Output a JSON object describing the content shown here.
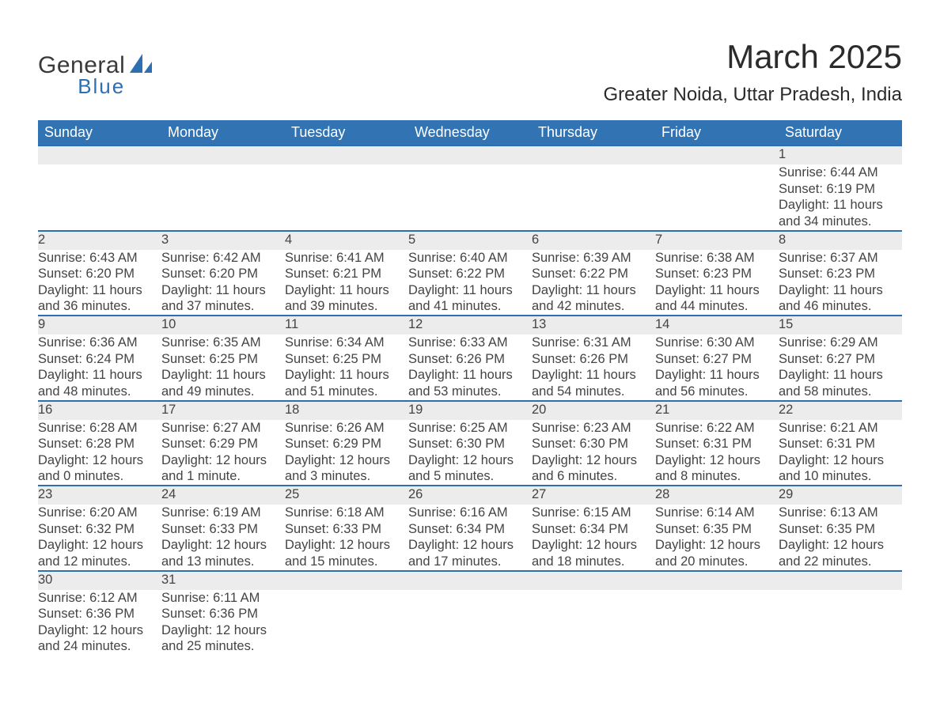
{
  "brand": {
    "name1": "General",
    "name2": "Blue"
  },
  "title": "March 2025",
  "location": "Greater Noida, Uttar Pradesh, India",
  "weekday_labels": [
    "Sunday",
    "Monday",
    "Tuesday",
    "Wednesday",
    "Thursday",
    "Friday",
    "Saturday"
  ],
  "colors": {
    "header_bg": "#3173b3",
    "header_text": "#ffffff",
    "row_divider": "#2d6fb1",
    "daynum_bg": "#ececec",
    "body_text": "#444444",
    "brand_blue": "#2d6fb1"
  },
  "calendar": {
    "type": "table",
    "month": "March",
    "year": 2025,
    "first_weekday_index": 6,
    "weeks": [
      [
        null,
        null,
        null,
        null,
        null,
        null,
        {
          "day": 1,
          "sunrise": "Sunrise: 6:44 AM",
          "sunset": "Sunset: 6:19 PM",
          "daylight": "Daylight: 11 hours and 34 minutes."
        }
      ],
      [
        {
          "day": 2,
          "sunrise": "Sunrise: 6:43 AM",
          "sunset": "Sunset: 6:20 PM",
          "daylight": "Daylight: 11 hours and 36 minutes."
        },
        {
          "day": 3,
          "sunrise": "Sunrise: 6:42 AM",
          "sunset": "Sunset: 6:20 PM",
          "daylight": "Daylight: 11 hours and 37 minutes."
        },
        {
          "day": 4,
          "sunrise": "Sunrise: 6:41 AM",
          "sunset": "Sunset: 6:21 PM",
          "daylight": "Daylight: 11 hours and 39 minutes."
        },
        {
          "day": 5,
          "sunrise": "Sunrise: 6:40 AM",
          "sunset": "Sunset: 6:22 PM",
          "daylight": "Daylight: 11 hours and 41 minutes."
        },
        {
          "day": 6,
          "sunrise": "Sunrise: 6:39 AM",
          "sunset": "Sunset: 6:22 PM",
          "daylight": "Daylight: 11 hours and 42 minutes."
        },
        {
          "day": 7,
          "sunrise": "Sunrise: 6:38 AM",
          "sunset": "Sunset: 6:23 PM",
          "daylight": "Daylight: 11 hours and 44 minutes."
        },
        {
          "day": 8,
          "sunrise": "Sunrise: 6:37 AM",
          "sunset": "Sunset: 6:23 PM",
          "daylight": "Daylight: 11 hours and 46 minutes."
        }
      ],
      [
        {
          "day": 9,
          "sunrise": "Sunrise: 6:36 AM",
          "sunset": "Sunset: 6:24 PM",
          "daylight": "Daylight: 11 hours and 48 minutes."
        },
        {
          "day": 10,
          "sunrise": "Sunrise: 6:35 AM",
          "sunset": "Sunset: 6:25 PM",
          "daylight": "Daylight: 11 hours and 49 minutes."
        },
        {
          "day": 11,
          "sunrise": "Sunrise: 6:34 AM",
          "sunset": "Sunset: 6:25 PM",
          "daylight": "Daylight: 11 hours and 51 minutes."
        },
        {
          "day": 12,
          "sunrise": "Sunrise: 6:33 AM",
          "sunset": "Sunset: 6:26 PM",
          "daylight": "Daylight: 11 hours and 53 minutes."
        },
        {
          "day": 13,
          "sunrise": "Sunrise: 6:31 AM",
          "sunset": "Sunset: 6:26 PM",
          "daylight": "Daylight: 11 hours and 54 minutes."
        },
        {
          "day": 14,
          "sunrise": "Sunrise: 6:30 AM",
          "sunset": "Sunset: 6:27 PM",
          "daylight": "Daylight: 11 hours and 56 minutes."
        },
        {
          "day": 15,
          "sunrise": "Sunrise: 6:29 AM",
          "sunset": "Sunset: 6:27 PM",
          "daylight": "Daylight: 11 hours and 58 minutes."
        }
      ],
      [
        {
          "day": 16,
          "sunrise": "Sunrise: 6:28 AM",
          "sunset": "Sunset: 6:28 PM",
          "daylight": "Daylight: 12 hours and 0 minutes."
        },
        {
          "day": 17,
          "sunrise": "Sunrise: 6:27 AM",
          "sunset": "Sunset: 6:29 PM",
          "daylight": "Daylight: 12 hours and 1 minute."
        },
        {
          "day": 18,
          "sunrise": "Sunrise: 6:26 AM",
          "sunset": "Sunset: 6:29 PM",
          "daylight": "Daylight: 12 hours and 3 minutes."
        },
        {
          "day": 19,
          "sunrise": "Sunrise: 6:25 AM",
          "sunset": "Sunset: 6:30 PM",
          "daylight": "Daylight: 12 hours and 5 minutes."
        },
        {
          "day": 20,
          "sunrise": "Sunrise: 6:23 AM",
          "sunset": "Sunset: 6:30 PM",
          "daylight": "Daylight: 12 hours and 6 minutes."
        },
        {
          "day": 21,
          "sunrise": "Sunrise: 6:22 AM",
          "sunset": "Sunset: 6:31 PM",
          "daylight": "Daylight: 12 hours and 8 minutes."
        },
        {
          "day": 22,
          "sunrise": "Sunrise: 6:21 AM",
          "sunset": "Sunset: 6:31 PM",
          "daylight": "Daylight: 12 hours and 10 minutes."
        }
      ],
      [
        {
          "day": 23,
          "sunrise": "Sunrise: 6:20 AM",
          "sunset": "Sunset: 6:32 PM",
          "daylight": "Daylight: 12 hours and 12 minutes."
        },
        {
          "day": 24,
          "sunrise": "Sunrise: 6:19 AM",
          "sunset": "Sunset: 6:33 PM",
          "daylight": "Daylight: 12 hours and 13 minutes."
        },
        {
          "day": 25,
          "sunrise": "Sunrise: 6:18 AM",
          "sunset": "Sunset: 6:33 PM",
          "daylight": "Daylight: 12 hours and 15 minutes."
        },
        {
          "day": 26,
          "sunrise": "Sunrise: 6:16 AM",
          "sunset": "Sunset: 6:34 PM",
          "daylight": "Daylight: 12 hours and 17 minutes."
        },
        {
          "day": 27,
          "sunrise": "Sunrise: 6:15 AM",
          "sunset": "Sunset: 6:34 PM",
          "daylight": "Daylight: 12 hours and 18 minutes."
        },
        {
          "day": 28,
          "sunrise": "Sunrise: 6:14 AM",
          "sunset": "Sunset: 6:35 PM",
          "daylight": "Daylight: 12 hours and 20 minutes."
        },
        {
          "day": 29,
          "sunrise": "Sunrise: 6:13 AM",
          "sunset": "Sunset: 6:35 PM",
          "daylight": "Daylight: 12 hours and 22 minutes."
        }
      ],
      [
        {
          "day": 30,
          "sunrise": "Sunrise: 6:12 AM",
          "sunset": "Sunset: 6:36 PM",
          "daylight": "Daylight: 12 hours and 24 minutes."
        },
        {
          "day": 31,
          "sunrise": "Sunrise: 6:11 AM",
          "sunset": "Sunset: 6:36 PM",
          "daylight": "Daylight: 12 hours and 25 minutes."
        },
        null,
        null,
        null,
        null,
        null
      ]
    ]
  }
}
